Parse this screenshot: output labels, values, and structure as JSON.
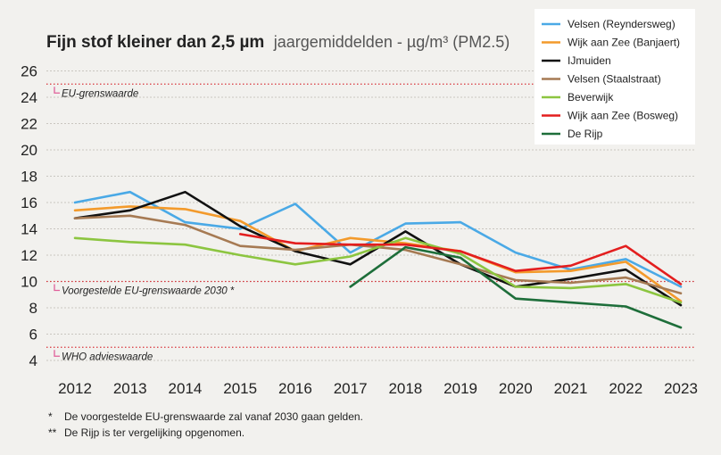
{
  "chart_data": {
    "type": "line",
    "title": "Fijn stof kleiner dan 2,5 µm",
    "subtitle": "jaargemiddelden - µg/m³ (PM2.5)",
    "xlabel": "",
    "ylabel": "",
    "x": [
      "2012",
      "2013",
      "2014",
      "2015",
      "2016",
      "2017",
      "2018",
      "2019",
      "2020",
      "2021",
      "2022",
      "2023"
    ],
    "ylim": [
      3,
      27
    ],
    "yticks": [
      4,
      6,
      8,
      10,
      12,
      14,
      16,
      18,
      20,
      22,
      24,
      26
    ],
    "grid": true,
    "legend_position": "top-right",
    "series": [
      {
        "name": "Velsen (Reyndersweg)",
        "color": "#4aa9e6",
        "values": [
          16.0,
          16.8,
          14.5,
          14.0,
          15.9,
          12.2,
          14.4,
          14.5,
          12.2,
          10.9,
          11.7,
          9.6
        ]
      },
      {
        "name": "Wijk aan Zee (Banjaert)",
        "color": "#f39a2b",
        "values": [
          15.4,
          15.7,
          15.5,
          14.6,
          12.3,
          13.3,
          12.9,
          12.3,
          10.7,
          10.8,
          11.5,
          8.5
        ]
      },
      {
        "name": "IJmuiden",
        "color": "#111111",
        "values": [
          14.8,
          15.4,
          16.8,
          14.2,
          12.3,
          11.3,
          13.8,
          11.3,
          9.6,
          10.2,
          10.9,
          8.2
        ]
      },
      {
        "name": "Velsen (Staalstraat)",
        "color": "#a67a53",
        "values": [
          14.8,
          15.0,
          14.3,
          12.7,
          12.4,
          12.8,
          12.4,
          11.3,
          10.1,
          9.9,
          10.3,
          9.1
        ]
      },
      {
        "name": "Beverwijk",
        "color": "#8cc540",
        "values": [
          13.3,
          13.0,
          12.8,
          12.0,
          11.3,
          11.9,
          13.3,
          12.1,
          9.6,
          9.5,
          9.8,
          8.4
        ]
      },
      {
        "name": "Wijk aan Zee (Bosweg)",
        "color": "#e31e1e",
        "values": [
          null,
          null,
          null,
          13.6,
          12.9,
          12.8,
          12.8,
          12.3,
          10.8,
          11.2,
          12.7,
          9.8
        ]
      },
      {
        "name": "De Rijp",
        "color": "#1e6e3a",
        "values": [
          null,
          null,
          null,
          null,
          null,
          9.6,
          12.6,
          11.8,
          8.7,
          8.4,
          8.1,
          6.5
        ]
      }
    ],
    "reference_lines": [
      {
        "label": "EU-grenswaarde",
        "value": 25
      },
      {
        "label": "Voorgestelde EU-grenswaarde 2030 *",
        "value": 10
      },
      {
        "label": "WHO advieswaarde",
        "value": 5
      }
    ],
    "footnotes": [
      {
        "marker": "*",
        "text": "De voorgestelde EU-grenswaarde zal vanaf 2030 gaan gelden."
      },
      {
        "marker": "**",
        "text": "De Rijp is ter vergelijking opgenomen."
      }
    ]
  }
}
